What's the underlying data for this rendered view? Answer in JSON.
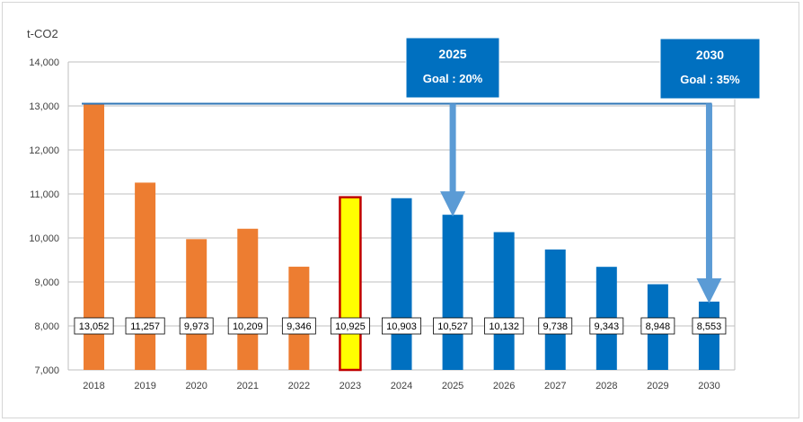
{
  "chart_data": {
    "type": "bar",
    "title": "",
    "xlabel": "",
    "ylabel": "t-CO2",
    "ylim": [
      7000,
      14000
    ],
    "yticks": [
      7000,
      8000,
      9000,
      10000,
      11000,
      12000,
      13000,
      14000
    ],
    "ytick_labels": [
      "7,000",
      "8,000",
      "9,000",
      "10,000",
      "11,000",
      "12,000",
      "13,000",
      "14,000"
    ],
    "grid": true,
    "categories": [
      "2018",
      "2019",
      "2020",
      "2021",
      "2022",
      "2023",
      "2024",
      "2025",
      "2026",
      "2027",
      "2028",
      "2029",
      "2030"
    ],
    "values": [
      13052,
      11257,
      9973,
      10209,
      9346,
      10925,
      10903,
      10527,
      10132,
      9738,
      9343,
      8948,
      8553
    ],
    "value_labels": [
      "13,052",
      "11,257",
      "9,973",
      "10,209",
      "9,346",
      "10,925",
      "10,903",
      "10,527",
      "10,132",
      "9,738",
      "9,343",
      "8,948",
      "8,553"
    ],
    "kinds": [
      "actual",
      "actual",
      "actual",
      "actual",
      "actual",
      "current",
      "plan",
      "plan",
      "plan",
      "plan",
      "plan",
      "plan",
      "plan"
    ],
    "colors": {
      "actual": "#ed7d31",
      "current_fill": "#ffff00",
      "current_border": "#c00000",
      "plan": "#0070c0",
      "arrow": "#5b9bd5",
      "goal_box": "#0070c0",
      "grid": "#bfbfbf"
    },
    "baseline_value": 13052,
    "goals": [
      {
        "year": "2025",
        "title": "2025",
        "text": "Goal : 20%",
        "target_index": 7
      },
      {
        "year": "2030",
        "title": "2030",
        "text": "Goal : 35%",
        "target_index": 12
      }
    ]
  }
}
